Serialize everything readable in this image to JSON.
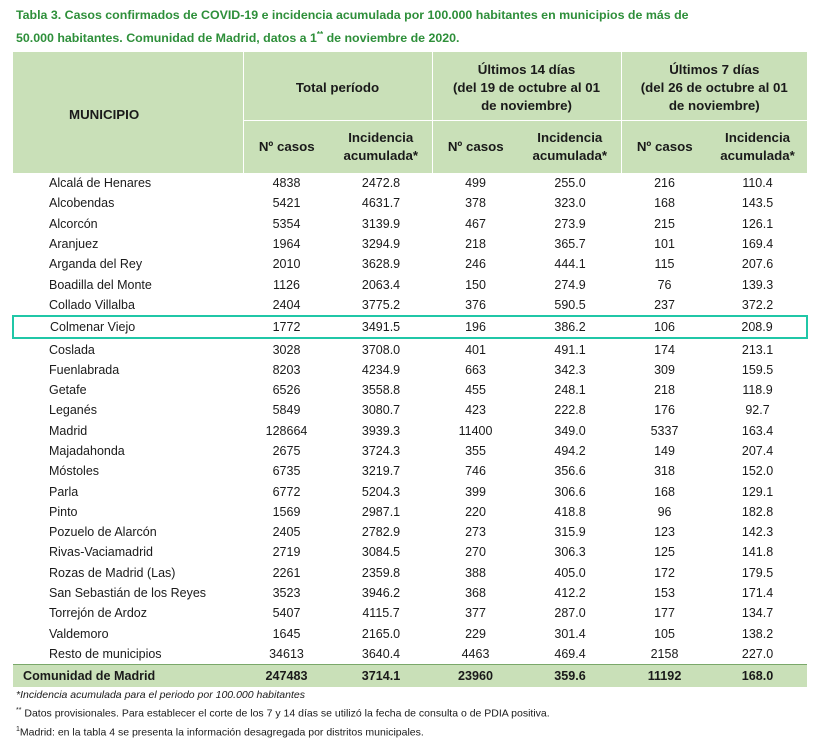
{
  "title": {
    "line1": "Tabla 3. Casos confirmados de COVID-19 e incidencia acumulada por 100.000 habitantes en municipios de más de",
    "line2_pre": "50.000 habitantes. Comunidad de Madrid, datos a 1",
    "line2_sup": "**",
    "line2_post": " de noviembre de 2020."
  },
  "header": {
    "municipio": "MUNICIPIO",
    "total": "Total período",
    "last14_line1": "Últimos 14 días",
    "last14_line2": "(del 19 de octubre al 01",
    "last14_line3": "de noviembre)",
    "last7_line1": "Últimos 7 días",
    "last7_line2": "(del 26 de octubre al 01",
    "last7_line3": "de noviembre)",
    "casos": "Nº casos",
    "incid_line1": "Incidencia",
    "incid_line2": "acumulada*"
  },
  "rows": [
    {
      "name": "Alcalá de Henares",
      "c_tot": "4838",
      "i_tot": "2472.8",
      "c14": "499",
      "i14": "255.0",
      "c7": "216",
      "i7": "110.4"
    },
    {
      "name": "Alcobendas",
      "c_tot": "5421",
      "i_tot": "4631.7",
      "c14": "378",
      "i14": "323.0",
      "c7": "168",
      "i7": "143.5"
    },
    {
      "name": "Alcorcón",
      "c_tot": "5354",
      "i_tot": "3139.9",
      "c14": "467",
      "i14": "273.9",
      "c7": "215",
      "i7": "126.1"
    },
    {
      "name": "Aranjuez",
      "c_tot": "1964",
      "i_tot": "3294.9",
      "c14": "218",
      "i14": "365.7",
      "c7": "101",
      "i7": "169.4"
    },
    {
      "name": "Arganda del Rey",
      "c_tot": "2010",
      "i_tot": "3628.9",
      "c14": "246",
      "i14": "444.1",
      "c7": "115",
      "i7": "207.6"
    },
    {
      "name": "Boadilla del Monte",
      "c_tot": "1126",
      "i_tot": "2063.4",
      "c14": "150",
      "i14": "274.9",
      "c7": "76",
      "i7": "139.3"
    },
    {
      "name": "Collado Villalba",
      "c_tot": "2404",
      "i_tot": "3775.2",
      "c14": "376",
      "i14": "590.5",
      "c7": "237",
      "i7": "372.2"
    },
    {
      "name": "Colmenar Viejo",
      "c_tot": "1772",
      "i_tot": "3491.5",
      "c14": "196",
      "i14": "386.2",
      "c7": "106",
      "i7": "208.9"
    },
    {
      "name": "Coslada",
      "c_tot": "3028",
      "i_tot": "3708.0",
      "c14": "401",
      "i14": "491.1",
      "c7": "174",
      "i7": "213.1"
    },
    {
      "name": "Fuenlabrada",
      "c_tot": "8203",
      "i_tot": "4234.9",
      "c14": "663",
      "i14": "342.3",
      "c7": "309",
      "i7": "159.5"
    },
    {
      "name": "Getafe",
      "c_tot": "6526",
      "i_tot": "3558.8",
      "c14": "455",
      "i14": "248.1",
      "c7": "218",
      "i7": "118.9"
    },
    {
      "name": "Leganés",
      "c_tot": "5849",
      "i_tot": "3080.7",
      "c14": "423",
      "i14": "222.8",
      "c7": "176",
      "i7": "92.7"
    },
    {
      "name": "Madrid",
      "c_tot": "128664",
      "i_tot": "3939.3",
      "c14": "11400",
      "i14": "349.0",
      "c7": "5337",
      "i7": "163.4"
    },
    {
      "name": "Majadahonda",
      "c_tot": "2675",
      "i_tot": "3724.3",
      "c14": "355",
      "i14": "494.2",
      "c7": "149",
      "i7": "207.4"
    },
    {
      "name": "Móstoles",
      "c_tot": "6735",
      "i_tot": "3219.7",
      "c14": "746",
      "i14": "356.6",
      "c7": "318",
      "i7": "152.0"
    },
    {
      "name": "Parla",
      "c_tot": "6772",
      "i_tot": "5204.3",
      "c14": "399",
      "i14": "306.6",
      "c7": "168",
      "i7": "129.1"
    },
    {
      "name": "Pinto",
      "c_tot": "1569",
      "i_tot": "2987.1",
      "c14": "220",
      "i14": "418.8",
      "c7": "96",
      "i7": "182.8"
    },
    {
      "name": "Pozuelo de Alarcón",
      "c_tot": "2405",
      "i_tot": "2782.9",
      "c14": "273",
      "i14": "315.9",
      "c7": "123",
      "i7": "142.3"
    },
    {
      "name": "Rivas-Vaciamadrid",
      "c_tot": "2719",
      "i_tot": "3084.5",
      "c14": "270",
      "i14": "306.3",
      "c7": "125",
      "i7": "141.8"
    },
    {
      "name": "Rozas de Madrid (Las)",
      "c_tot": "2261",
      "i_tot": "2359.8",
      "c14": "388",
      "i14": "405.0",
      "c7": "172",
      "i7": "179.5"
    },
    {
      "name": "San Sebastián de los Reyes",
      "c_tot": "3523",
      "i_tot": "3946.2",
      "c14": "368",
      "i14": "412.2",
      "c7": "153",
      "i7": "171.4"
    },
    {
      "name": "Torrejón de Ardoz",
      "c_tot": "5407",
      "i_tot": "4115.7",
      "c14": "377",
      "i14": "287.0",
      "c7": "177",
      "i7": "134.7"
    },
    {
      "name": "Valdemoro",
      "c_tot": "1645",
      "i_tot": "2165.0",
      "c14": "229",
      "i14": "301.4",
      "c7": "105",
      "i7": "138.2"
    },
    {
      "name": "Resto de municipios",
      "c_tot": "34613",
      "i_tot": "3640.4",
      "c14": "4463",
      "i14": "469.4",
      "c7": "2158",
      "i7": "227.0"
    }
  ],
  "highlighted_row": "Colmenar Viejo",
  "total_row": {
    "name": "Comunidad de Madrid",
    "c_tot": "247483",
    "i_tot": "3714.1",
    "c14": "23960",
    "i14": "359.6",
    "c7": "11192",
    "i7": "168.0"
  },
  "notes": {
    "n1": "*Incidencia acumulada para el periodo por 100.000 habitantes",
    "n2_sup": "**",
    "n2": " Datos provisionales. Para establecer el corte de los 7 y 14 días se utilizó la fecha de consulta o de PDIA positiva.",
    "n3_sup": "1",
    "n3": "Madrid: en la tabla 4 se presenta la información desagregada por distritos municipales."
  },
  "colors": {
    "title": "#2e8f3a",
    "header_bg": "#c9e0b8",
    "highlight": "#20c7a7"
  }
}
